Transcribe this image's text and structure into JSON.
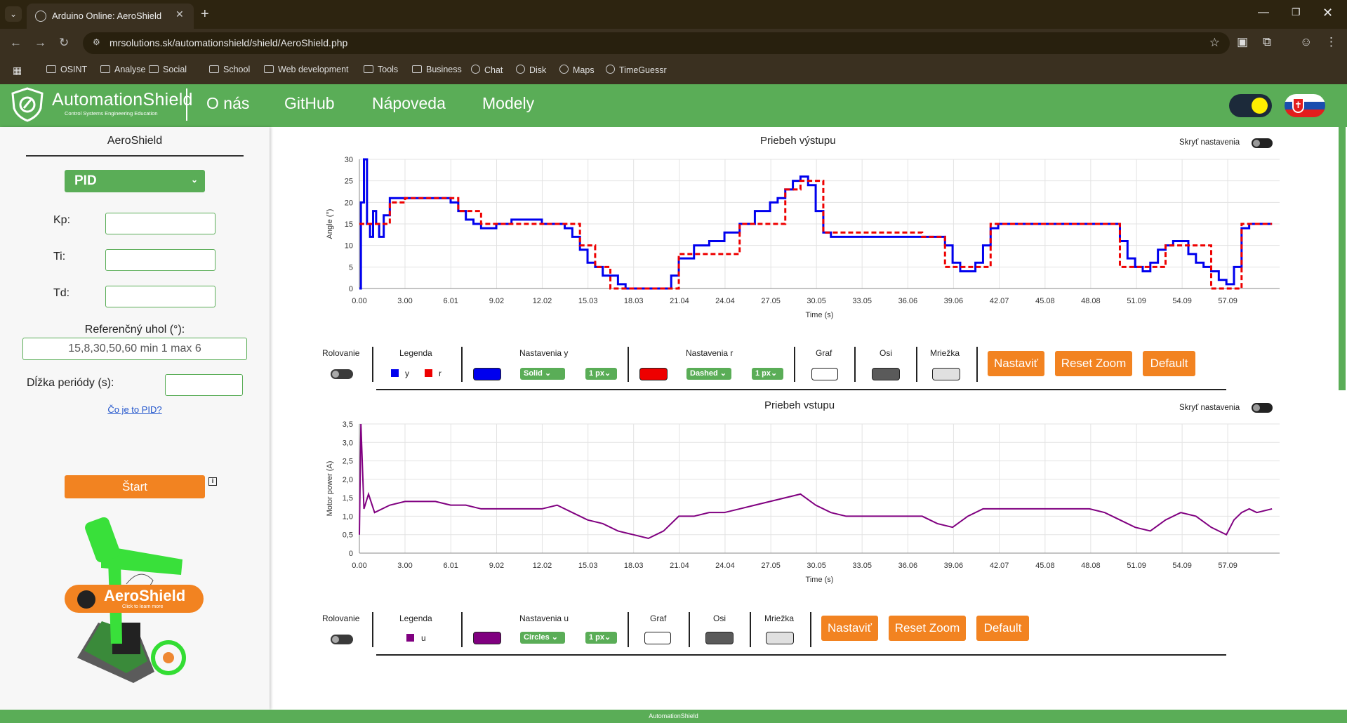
{
  "browser": {
    "tab_title": "Arduino Online: AeroShield",
    "url": "mrsolutions.sk/automationshield/shield/AeroShield.php",
    "bookmarks": [
      "OSINT",
      "Analyse",
      "Social",
      "School",
      "Web development",
      "Tools",
      "Business",
      "Chat",
      "Disk",
      "Maps",
      "TimeGuessr"
    ]
  },
  "header": {
    "logo_text": "AutomationShield",
    "logo_sub": "Control Systems Engineering Education",
    "nav": [
      "O nás",
      "GitHub",
      "Nápoveda",
      "Modely"
    ],
    "accent": "#5aad57"
  },
  "left": {
    "title": "AeroShield",
    "mode": "PID",
    "kp_label": "Kp:",
    "ti_label": "Ti:",
    "td_label": "Td:",
    "ref_label": "Referenčný uhol (°):",
    "ref_placeholder": "15,8,30,50,60 min 1 max 6",
    "period_label": "Dĺžka periódy (s):",
    "pid_link": "Čo je to PID?",
    "start_label": "Štart",
    "github_label": "AeroShield",
    "github_sub": "Click to learn more"
  },
  "output_chart": {
    "title": "Priebeh výstupu",
    "hide_settings": "Skryť nastavenia",
    "controls": {
      "scroll": "Rolovanie",
      "legend": "Legenda",
      "legend_y": "y",
      "legend_r": "r",
      "settings_y": "Nastavenia y",
      "settings_r": "Nastavenia r",
      "style_y": "Solid",
      "style_r": "Dashed",
      "width_y": "1 px",
      "width_r": "1 px",
      "graph": "Graf",
      "axes": "Osi",
      "grid": "Mriežka",
      "btn_set": "Nastaviť",
      "btn_reset": "Reset Zoom",
      "btn_default": "Default",
      "color_y": "#0000ee",
      "color_r": "#ee0000"
    }
  },
  "input_chart": {
    "title": "Priebeh vstupu",
    "hide_settings": "Skryť nastavenia",
    "controls": {
      "scroll": "Rolovanie",
      "legend": "Legenda",
      "legend_u": "u",
      "settings_u": "Nastavenia u",
      "style_u": "Circles",
      "width_u": "1 px",
      "graph": "Graf",
      "axes": "Osi",
      "grid": "Mriežka",
      "btn_set": "Nastaviť",
      "btn_reset": "Reset Zoom",
      "btn_default": "Default",
      "color_u": "#800080"
    }
  },
  "footer": "AutomationShield",
  "chart_data": [
    {
      "type": "line",
      "title": "Priebeh výstupu",
      "xlabel": "Time (s)",
      "ylabel": "Angle (°)",
      "xlim": [
        0,
        60.5
      ],
      "ylim": [
        0,
        30
      ],
      "x_ticks": [
        "0.00",
        "3.00",
        "6.01",
        "9.02",
        "12.02",
        "15.03",
        "18.03",
        "21.04",
        "24.04",
        "27.05",
        "30.05",
        "33.05",
        "36.06",
        "39.06",
        "42.07",
        "45.08",
        "48.08",
        "51.09",
        "54.09",
        "57.09"
      ],
      "y_ticks": [
        "0",
        "5",
        "10",
        "15",
        "20",
        "25",
        "30"
      ],
      "series": [
        {
          "name": "y",
          "color": "#0000ee",
          "style": "solid",
          "x": [
            0,
            0.1,
            0.3,
            0.5,
            0.7,
            0.9,
            1.1,
            1.3,
            1.6,
            2.0,
            2.5,
            3.0,
            4.0,
            5.0,
            6.0,
            6.5,
            7.0,
            7.5,
            8.0,
            9.0,
            10.0,
            11.0,
            12.0,
            13.0,
            13.5,
            14.0,
            14.5,
            15.0,
            15.5,
            16.0,
            17.0,
            17.5,
            18.0,
            19.0,
            20.0,
            20.5,
            21.0,
            22.0,
            23.0,
            24.0,
            25.0,
            26.0,
            27.0,
            27.5,
            28.0,
            28.5,
            29.0,
            29.5,
            30.0,
            30.5,
            31.0,
            32.0,
            33.0,
            34.0,
            35.0,
            36.0,
            37.0,
            38.0,
            38.5,
            39.0,
            39.5,
            40.0,
            40.5,
            41.0,
            41.5,
            42.0,
            43.0,
            44.0,
            45.0,
            46.0,
            47.0,
            48.0,
            49.0,
            49.5,
            50.0,
            50.5,
            51.0,
            51.5,
            52.0,
            52.5,
            53.0,
            53.5,
            54.0,
            54.5,
            55.0,
            55.5,
            56.0,
            56.5,
            57.0,
            57.5,
            58.0,
            58.5,
            59.0,
            60.0
          ],
          "y": [
            0,
            20,
            30,
            15,
            12,
            18,
            15,
            12,
            17,
            21,
            21,
            21,
            21,
            21,
            20,
            18,
            16,
            15,
            14,
            15,
            16,
            16,
            15,
            15,
            14,
            12,
            9,
            6,
            5,
            3,
            1,
            0,
            0,
            0,
            0,
            3,
            7,
            10,
            11,
            13,
            15,
            18,
            20,
            21,
            23,
            25,
            26,
            24,
            18,
            13,
            12,
            12,
            12,
            12,
            12,
            12,
            12,
            12,
            10,
            6,
            4,
            4,
            6,
            10,
            14,
            15,
            15,
            15,
            15,
            15,
            15,
            15,
            15,
            15,
            11,
            7,
            5,
            4,
            6,
            9,
            10,
            11,
            11,
            8,
            6,
            5,
            4,
            2,
            1,
            5,
            14,
            15,
            15,
            15
          ]
        },
        {
          "name": "r",
          "color": "#ee0000",
          "style": "dashed",
          "x": [
            0,
            2.0,
            3.0,
            5.5,
            6.5,
            8.0,
            13.0,
            14.5,
            15.5,
            16.5,
            20.0,
            21.0,
            25.0,
            28.0,
            29.0,
            29.5,
            30.5,
            37.0,
            38.5,
            40.5,
            41.5,
            48.5,
            50.0,
            52.0,
            53.0,
            54.5,
            56.0,
            58.0,
            60.0
          ],
          "y": [
            15,
            20,
            21,
            21,
            18,
            15,
            15,
            10,
            5,
            0,
            0,
            8,
            15,
            23,
            25,
            25,
            13,
            12,
            5,
            5,
            15,
            15,
            5,
            5,
            10,
            10,
            0,
            15,
            15
          ]
        }
      ]
    },
    {
      "type": "line",
      "title": "Priebeh vstupu",
      "xlabel": "Time (s)",
      "ylabel": "Motor power (A)",
      "xlim": [
        0,
        60.5
      ],
      "ylim": [
        0,
        3.5
      ],
      "x_ticks": [
        "0.00",
        "3.00",
        "6.01",
        "9.02",
        "12.02",
        "15.03",
        "18.03",
        "21.04",
        "24.04",
        "27.05",
        "30.05",
        "33.05",
        "36.06",
        "39.06",
        "42.07",
        "45.08",
        "48.08",
        "51.09",
        "54.09",
        "57.09"
      ],
      "y_ticks": [
        "0",
        "0,5",
        "1,0",
        "1,5",
        "2,0",
        "2,5",
        "3,0",
        "3,5"
      ],
      "series": [
        {
          "name": "u",
          "color": "#800080",
          "x": [
            0,
            0.1,
            0.3,
            0.6,
            1.0,
            2.0,
            3.0,
            4.0,
            5.0,
            6.0,
            7.0,
            8.0,
            9.0,
            10.0,
            11.0,
            12.0,
            13.0,
            14.0,
            15.0,
            16.0,
            17.0,
            18.0,
            19.0,
            20.0,
            21.0,
            22.0,
            23.0,
            24.0,
            25.0,
            26.0,
            27.0,
            28.0,
            29.0,
            30.0,
            31.0,
            32.0,
            33.0,
            34.0,
            35.0,
            36.0,
            37.0,
            38.0,
            39.0,
            40.0,
            41.0,
            42.0,
            43.0,
            44.0,
            45.0,
            46.0,
            47.0,
            48.0,
            49.0,
            50.0,
            51.0,
            52.0,
            53.0,
            54.0,
            55.0,
            56.0,
            57.0,
            57.5,
            58.0,
            58.5,
            59.0,
            60.0
          ],
          "y": [
            0.5,
            3.5,
            1.2,
            1.6,
            1.1,
            1.3,
            1.4,
            1.4,
            1.4,
            1.3,
            1.3,
            1.2,
            1.2,
            1.2,
            1.2,
            1.2,
            1.3,
            1.1,
            0.9,
            0.8,
            0.6,
            0.5,
            0.4,
            0.6,
            1.0,
            1.0,
            1.1,
            1.1,
            1.2,
            1.3,
            1.4,
            1.5,
            1.6,
            1.3,
            1.1,
            1.0,
            1.0,
            1.0,
            1.0,
            1.0,
            1.0,
            0.8,
            0.7,
            1.0,
            1.2,
            1.2,
            1.2,
            1.2,
            1.2,
            1.2,
            1.2,
            1.2,
            1.1,
            0.9,
            0.7,
            0.6,
            0.9,
            1.1,
            1.0,
            0.7,
            0.5,
            0.9,
            1.1,
            1.2,
            1.1,
            1.2
          ]
        }
      ]
    }
  ]
}
